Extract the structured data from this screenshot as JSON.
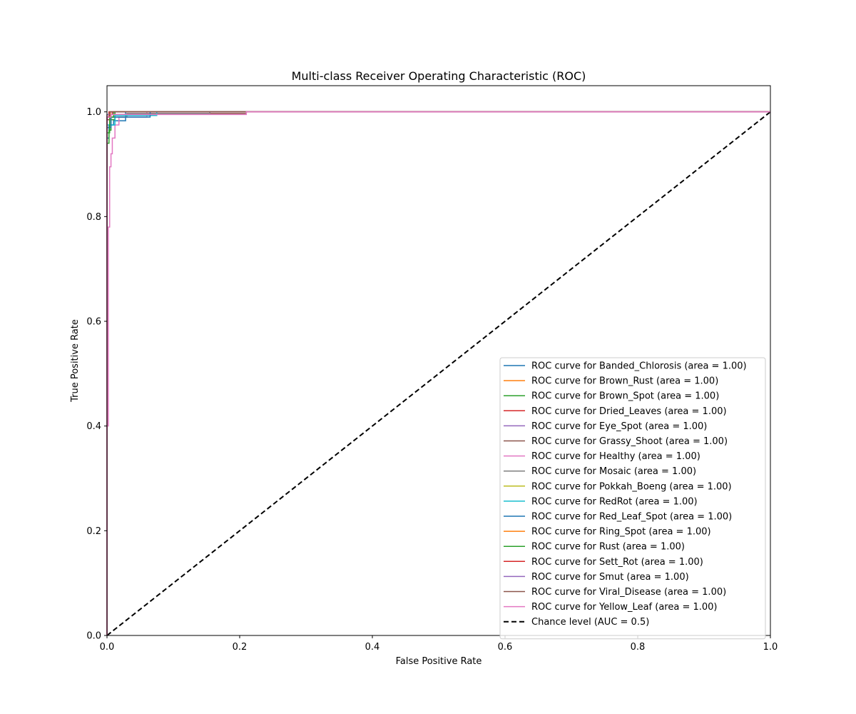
{
  "chart_data": {
    "type": "line",
    "title": "Multi-class Receiver Operating Characteristic (ROC)",
    "xlabel": "False Positive Rate",
    "ylabel": "True Positive Rate",
    "xlim": [
      0.0,
      1.0
    ],
    "ylim": [
      0.0,
      1.05
    ],
    "xticks": [
      0.0,
      0.2,
      0.4,
      0.6,
      0.8,
      1.0
    ],
    "xtick_labels": [
      "0.0",
      "0.2",
      "0.4",
      "0.6",
      "0.8",
      "1.0"
    ],
    "yticks": [
      0.0,
      0.2,
      0.4,
      0.6,
      0.8,
      1.0
    ],
    "ytick_labels": [
      "0.0",
      "0.2",
      "0.4",
      "0.6",
      "0.8",
      "1.0"
    ],
    "grid": false,
    "legend_position": "lower-right",
    "series": [
      {
        "name": "ROC curve for Banded_Chlorosis (area = 1.00)",
        "color": "#1f77b4",
        "x": [
          0.0,
          0.0,
          0.003,
          0.003,
          0.01,
          0.01,
          0.028,
          0.028,
          1.0
        ],
        "y": [
          0.0,
          0.95,
          0.95,
          0.975,
          0.975,
          0.983,
          0.983,
          1.0,
          1.0
        ]
      },
      {
        "name": "ROC curve for Brown_Rust (area = 1.00)",
        "color": "#ff7f0e",
        "x": [
          0.0,
          0.0,
          0.004,
          0.004,
          0.012,
          0.012,
          1.0
        ],
        "y": [
          0.0,
          0.97,
          0.97,
          0.985,
          0.985,
          1.0,
          1.0
        ]
      },
      {
        "name": "ROC curve for Brown_Spot (area = 1.00)",
        "color": "#2ca02c",
        "x": [
          0.0,
          0.0,
          0.003,
          0.003,
          0.006,
          0.006,
          0.012,
          0.012,
          1.0
        ],
        "y": [
          0.0,
          0.94,
          0.94,
          0.965,
          0.965,
          0.985,
          0.985,
          1.0,
          1.0
        ]
      },
      {
        "name": "ROC curve for Dried_Leaves (area = 1.00)",
        "color": "#d62728",
        "x": [
          0.0,
          0.0,
          0.004,
          0.004,
          0.008,
          0.008,
          1.0
        ],
        "y": [
          0.0,
          0.985,
          0.985,
          0.995,
          0.995,
          1.0,
          1.0
        ]
      },
      {
        "name": "ROC curve for Eye_Spot (area = 1.00)",
        "color": "#9467bd",
        "x": [
          0.0,
          0.0,
          0.005,
          0.005,
          1.0
        ],
        "y": [
          0.0,
          0.99,
          0.99,
          1.0,
          1.0
        ]
      },
      {
        "name": "ROC curve for Grassy_Shoot (area = 1.00)",
        "color": "#8c564b",
        "x": [
          0.0,
          0.0,
          0.006,
          0.006,
          0.065,
          0.065,
          0.21,
          0.21,
          1.0
        ],
        "y": [
          0.0,
          0.985,
          0.985,
          0.995,
          0.995,
          0.997,
          0.997,
          1.0,
          1.0
        ]
      },
      {
        "name": "ROC curve for Healthy (area = 1.00)",
        "color": "#e377c2",
        "x": [
          0.0,
          0.0,
          0.002,
          0.002,
          0.004,
          0.004,
          0.006,
          0.006,
          0.008,
          0.008,
          0.012,
          0.012,
          0.018,
          0.018,
          0.06,
          0.06,
          1.0
        ],
        "y": [
          0.0,
          0.4,
          0.4,
          0.78,
          0.78,
          0.895,
          0.895,
          0.92,
          0.92,
          0.95,
          0.95,
          0.975,
          0.975,
          0.99,
          0.99,
          1.0,
          1.0
        ]
      },
      {
        "name": "ROC curve for Mosaic (area = 1.00)",
        "color": "#7f7f7f",
        "x": [
          0.0,
          0.0,
          0.03,
          0.03,
          0.155,
          0.155,
          1.0
        ],
        "y": [
          0.0,
          0.99,
          0.99,
          0.997,
          0.997,
          1.0,
          1.0
        ]
      },
      {
        "name": "ROC curve for Pokkah_Boeng (area = 1.00)",
        "color": "#bcbd22",
        "x": [
          0.0,
          0.0,
          0.004,
          0.004,
          1.0
        ],
        "y": [
          0.0,
          0.995,
          0.995,
          1.0,
          1.0
        ]
      },
      {
        "name": "ROC curve for RedRot (area = 1.00)",
        "color": "#17becf",
        "x": [
          0.0,
          0.0,
          0.012,
          0.012,
          0.075,
          0.075,
          1.0
        ],
        "y": [
          0.0,
          0.975,
          0.975,
          0.993,
          0.993,
          1.0,
          1.0
        ]
      },
      {
        "name": "ROC curve for Red_Leaf_Spot (area = 1.00)",
        "color": "#1f77b4",
        "x": [
          0.0,
          0.0,
          0.006,
          0.006,
          0.065,
          0.065,
          1.0
        ],
        "y": [
          0.0,
          0.97,
          0.97,
          0.99,
          0.99,
          1.0,
          1.0
        ]
      },
      {
        "name": "ROC curve for Ring_Spot (area = 1.00)",
        "color": "#ff7f0e",
        "x": [
          0.0,
          0.0,
          0.005,
          0.005,
          1.0
        ],
        "y": [
          0.0,
          0.99,
          0.99,
          1.0,
          1.0
        ]
      },
      {
        "name": "ROC curve for Rust (area = 1.00)",
        "color": "#2ca02c",
        "x": [
          0.0,
          0.0,
          0.004,
          0.004,
          0.01,
          0.01,
          1.0
        ],
        "y": [
          0.0,
          0.96,
          0.96,
          0.99,
          0.99,
          1.0,
          1.0
        ]
      },
      {
        "name": "ROC curve for Sett_Rot (area = 1.00)",
        "color": "#d62728",
        "x": [
          0.0,
          0.0,
          0.003,
          0.003,
          1.0
        ],
        "y": [
          0.0,
          0.99,
          0.99,
          1.0,
          1.0
        ]
      },
      {
        "name": "ROC curve for Smut (area = 1.00)",
        "color": "#9467bd",
        "x": [
          0.0,
          0.0,
          0.004,
          0.004,
          1.0
        ],
        "y": [
          0.0,
          0.995,
          0.995,
          1.0,
          1.0
        ]
      },
      {
        "name": "ROC curve for Viral_Disease (area = 1.00)",
        "color": "#8c564b",
        "x": [
          0.0,
          0.0,
          0.004,
          0.004,
          1.0
        ],
        "y": [
          0.0,
          0.99,
          0.99,
          1.0,
          1.0
        ]
      },
      {
        "name": "ROC curve for Yellow_Leaf (area = 1.00)",
        "color": "#e377c2",
        "x": [
          0.0,
          0.0,
          0.006,
          0.006,
          0.21,
          0.21,
          1.0
        ],
        "y": [
          0.0,
          0.99,
          0.99,
          0.995,
          0.995,
          1.0,
          1.0
        ]
      }
    ],
    "reference_line": {
      "name": "Chance level (AUC = 0.5)",
      "color": "#000000",
      "style": "dashed",
      "x": [
        0.0,
        1.0
      ],
      "y": [
        0.0,
        1.0
      ]
    }
  }
}
